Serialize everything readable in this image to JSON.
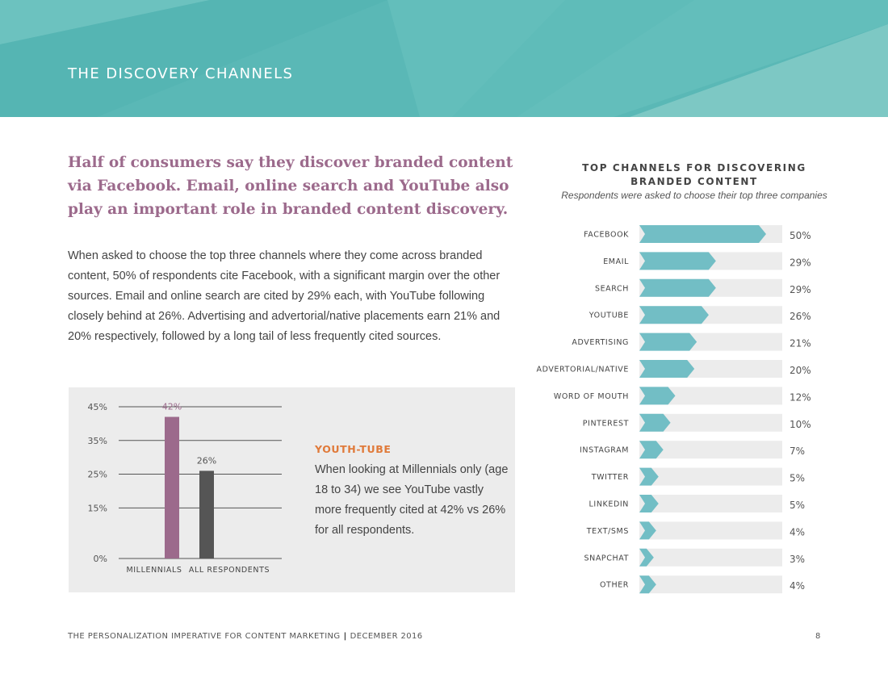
{
  "header": {
    "title": "THE DISCOVERY CHANNELS"
  },
  "headline": "Half of consumers say they discover branded content via Facebook. Email, online search and YouTube also play an important role in branded content discovery.",
  "body": "When asked to choose the top three channels where they come across branded content, 50% of respondents cite Facebook, with a significant margin over the other sources. Email and online search are cited by 29% each, with YouTube following closely behind at 26%. Advertising and advertorial/native placements earn 21% and 20% respectively, followed by a long tail of less frequently cited sources.",
  "inset": {
    "title": "YOUTH-TUBE",
    "text": "When looking at Millennials only (age 18 to 34) we see YouTube vastly more frequently cited at 42% vs 26% for all respondents."
  },
  "footer": {
    "left": "THE PERSONALIZATION IMPERATIVE FOR CONTENT MARKETING",
    "separator": "|",
    "right": "DECEMBER 2016",
    "page": "8"
  },
  "colors": {
    "teal": "#5ab8b6",
    "bar_teal": "#72bec5",
    "track": "#ececec",
    "purple": "#9c6a8c",
    "dark": "#555555",
    "orange": "#e07a3a"
  },
  "chart_data": [
    {
      "type": "bar",
      "title": "",
      "categories": [
        "MILLENNIALS",
        "ALL RESPONDENTS"
      ],
      "values": [
        42,
        26
      ],
      "value_labels": [
        "42%",
        "26%"
      ],
      "yticks": [
        0,
        15,
        25,
        35,
        45
      ],
      "ytick_labels": [
        "0%",
        "15%",
        "25%",
        "35%",
        "45%"
      ],
      "ylim": [
        0,
        45
      ],
      "grid": true,
      "bar_colors": [
        "#9c6a8c",
        "#555555"
      ]
    },
    {
      "type": "bar",
      "orientation": "horizontal",
      "title": "TOP CHANNELS FOR DISCOVERING BRANDED CONTENT",
      "subtitle": "Respondents were asked to choose their top three companies",
      "categories": [
        "FACEBOOK",
        "EMAIL",
        "SEARCH",
        "YOUTUBE",
        "ADVERTISING",
        "ADVERTORIAL/NATIVE",
        "WORD OF MOUTH",
        "PINTEREST",
        "INSTAGRAM",
        "TWITTER",
        "LINKEDIN",
        "TEXT/SMS",
        "SNAPCHAT",
        "OTHER"
      ],
      "values": [
        50,
        29,
        29,
        26,
        21,
        20,
        12,
        10,
        7,
        5,
        5,
        4,
        3,
        4
      ],
      "value_labels": [
        "50%",
        "29%",
        "29%",
        "26%",
        "21%",
        "20%",
        "12%",
        "10%",
        "7%",
        "5%",
        "5%",
        "4%",
        "3%",
        "4%"
      ],
      "xlim": [
        0,
        60
      ]
    }
  ]
}
